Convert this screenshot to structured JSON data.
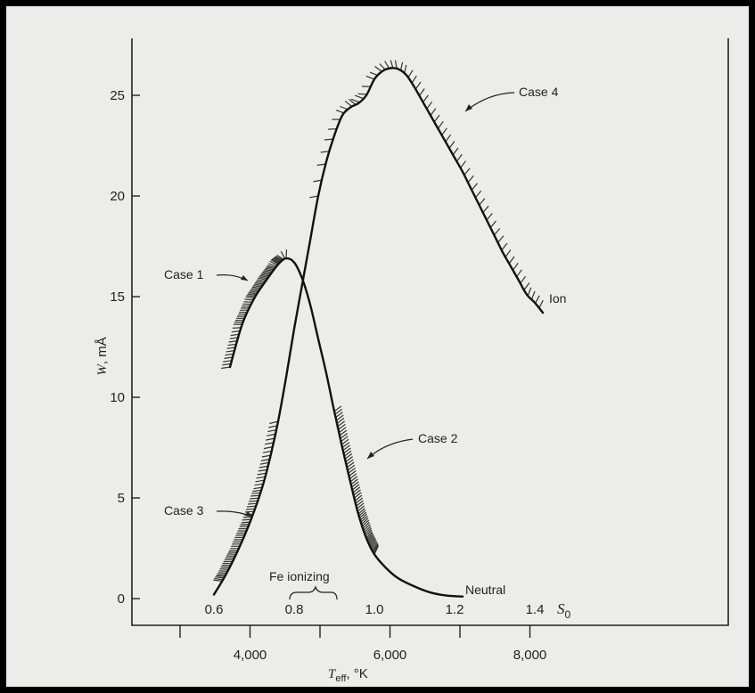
{
  "chart_data": {
    "type": "line",
    "title": "",
    "ylabel": "W, mÅ",
    "ylabel_parts": {
      "var": "W",
      "unit": ", mÅ"
    },
    "ylim": [
      0,
      27
    ],
    "y_ticks": [
      0,
      5,
      10,
      15,
      20,
      25
    ],
    "x_secondary": {
      "label": "S",
      "label_sub": "0",
      "range": [
        0.6,
        1.4
      ],
      "ticks": [
        0.6,
        0.8,
        1.0,
        1.2,
        1.4
      ],
      "tick_labels": [
        "0.6",
        "0.8",
        "1.0",
        "1.2",
        "1.4"
      ]
    },
    "x_primary": {
      "label_main": "T",
      "label_sub": "eff",
      "label_unit": ", °K",
      "ticks": [
        3000,
        4000,
        5000,
        6000,
        7000,
        8000
      ],
      "tick_labels": [
        "",
        "4,000",
        "",
        "6,000",
        "",
        "8,000"
      ]
    },
    "series": [
      {
        "name": "Neutral",
        "x": [
          0.64,
          0.67,
          0.7,
          0.73,
          0.76,
          0.78,
          0.8,
          0.82,
          0.84,
          0.86,
          0.88,
          0.9,
          0.92,
          0.94,
          0.96,
          0.98,
          1.0,
          1.03,
          1.06,
          1.1,
          1.14,
          1.18,
          1.22
        ],
        "y": [
          11.5,
          13.6,
          14.9,
          15.8,
          16.6,
          16.9,
          16.7,
          15.9,
          14.6,
          12.9,
          11.2,
          9.3,
          7.5,
          5.8,
          4.2,
          3.0,
          2.2,
          1.5,
          1.0,
          0.6,
          0.3,
          0.15,
          0.1
        ]
      },
      {
        "name": "Ion",
        "x": [
          0.6,
          0.63,
          0.66,
          0.69,
          0.72,
          0.74,
          0.76,
          0.78,
          0.8,
          0.82,
          0.84,
          0.86,
          0.88,
          0.9,
          0.92,
          0.94,
          0.96,
          0.98,
          1.0,
          1.02,
          1.04,
          1.06,
          1.08,
          1.1,
          1.12,
          1.14,
          1.16,
          1.18,
          1.2,
          1.22,
          1.24,
          1.26,
          1.28,
          1.3,
          1.32,
          1.34,
          1.36,
          1.38,
          1.4,
          1.42
        ],
        "y": [
          0.2,
          1.2,
          2.4,
          3.8,
          5.5,
          7.0,
          8.8,
          11.0,
          13.4,
          15.6,
          17.8,
          20.0,
          21.7,
          23.0,
          24.0,
          24.4,
          24.6,
          25.0,
          25.8,
          26.2,
          26.35,
          26.3,
          26.0,
          25.4,
          24.7,
          24.0,
          23.3,
          22.6,
          21.9,
          21.2,
          20.4,
          19.6,
          18.8,
          18.0,
          17.2,
          16.5,
          15.8,
          15.1,
          14.7,
          14.2
        ]
      }
    ],
    "annotations": [
      {
        "text": "Case 1"
      },
      {
        "text": "Case 2"
      },
      {
        "text": "Case 3"
      },
      {
        "text": "Case 4"
      },
      {
        "text": "Neutral"
      },
      {
        "text": "Ion"
      },
      {
        "text": "Fe ionizing"
      }
    ],
    "hatched_ranges": [
      {
        "series": "Neutral",
        "x": [
          0.64,
          0.78
        ],
        "side": "above"
      },
      {
        "series": "Neutral",
        "x": [
          0.9,
          1.0
        ],
        "side": "above"
      },
      {
        "series": "Ion",
        "x": [
          0.62,
          0.76
        ],
        "side": "above"
      },
      {
        "series": "Ion",
        "x": [
          0.86,
          1.42
        ],
        "side": "above"
      }
    ],
    "grid": false,
    "legend": "none"
  }
}
